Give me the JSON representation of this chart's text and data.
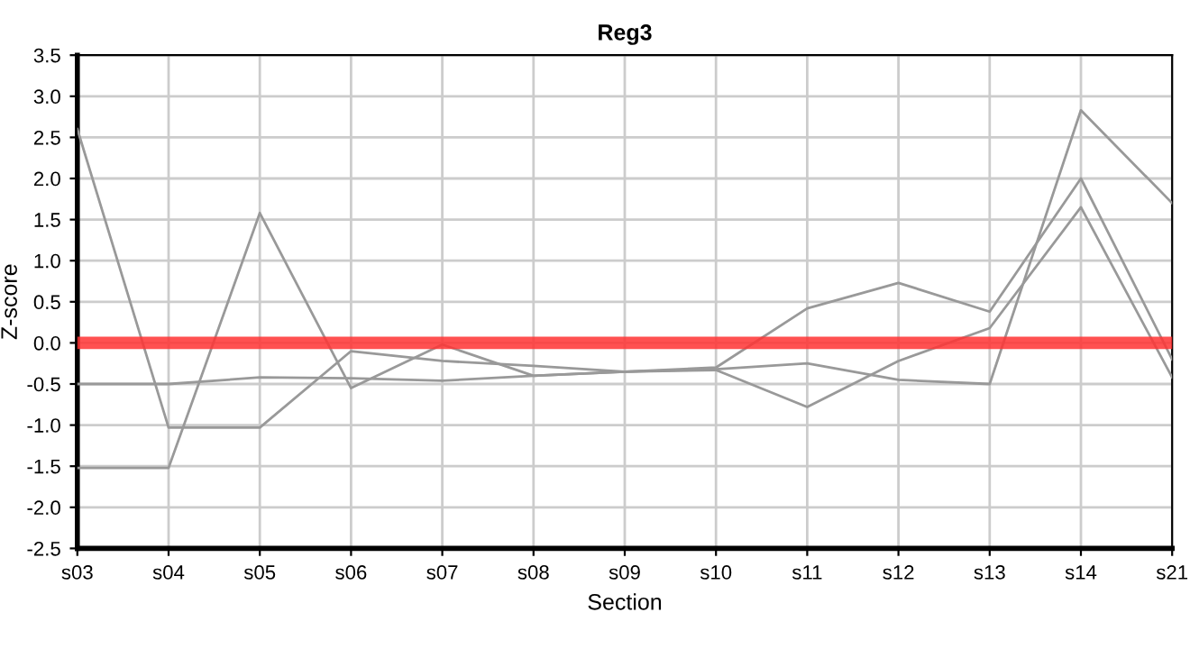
{
  "chart_data": {
    "type": "line",
    "title": "Reg3",
    "xlabel": "Section",
    "ylabel": "Z-score",
    "categories": [
      "s03",
      "s04",
      "s05",
      "s06",
      "s07",
      "s08",
      "s09",
      "s10",
      "s11",
      "s12",
      "s13",
      "s14",
      "s21"
    ],
    "series": [
      {
        "color": "#999999",
        "values": [
          2.6,
          -1.03,
          -1.03,
          -0.1,
          -0.22,
          -0.28,
          -0.35,
          -0.3,
          0.42,
          0.73,
          0.38,
          2.0,
          -0.2
        ]
      },
      {
        "color": "#999999",
        "values": [
          -1.52,
          -1.52,
          1.58,
          -0.55,
          -0.02,
          -0.4,
          -0.35,
          -0.33,
          -0.78,
          -0.22,
          0.18,
          1.65,
          -0.42
        ]
      },
      {
        "color": "#999999",
        "values": [
          -0.5,
          -0.5,
          -0.42,
          -0.43,
          -0.46,
          -0.4,
          -0.35,
          -0.32,
          -0.25,
          -0.45,
          -0.5,
          2.83,
          1.7
        ]
      }
    ],
    "ylim": [
      -2.5,
      3.5
    ],
    "yticks": [
      -2.5,
      {
        "value": -2,
        "label": "-2.0"
      },
      -1.5,
      {
        "value": -1,
        "label": "-1.0"
      },
      -0.5,
      {
        "value": 0,
        "label": "0.0"
      },
      0.5,
      {
        "value": 1,
        "label": "1.0"
      },
      1.5,
      {
        "value": 2,
        "label": "2.0"
      },
      2.5,
      {
        "value": 3,
        "label": "3.0"
      },
      3.5
    ],
    "ref_lines": [
      {
        "axis": "y",
        "value": 0,
        "color": "#ff3333"
      }
    ],
    "grid": true,
    "legend": false
  }
}
